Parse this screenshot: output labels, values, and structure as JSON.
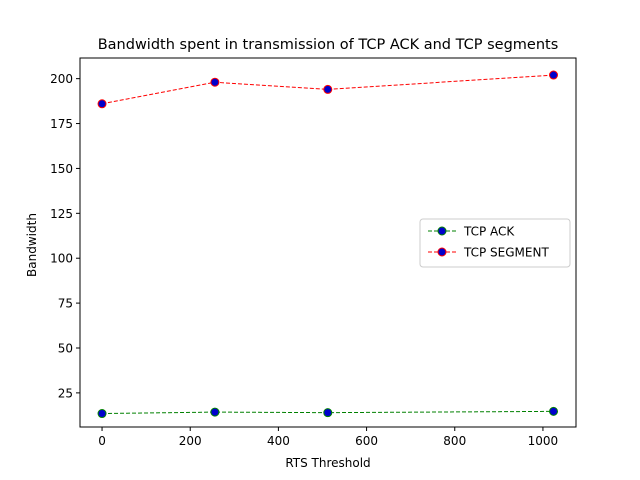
{
  "chart_data": {
    "type": "line",
    "title": "Bandwidth spent in transmission of TCP ACK and TCP segments",
    "xlabel": "RTS Threshold",
    "ylabel": "Bandwidth",
    "xlim": [
      -50,
      1075
    ],
    "ylim": [
      6,
      211.5
    ],
    "xticks": [
      0,
      200,
      400,
      600,
      800,
      1000
    ],
    "yticks": [
      25,
      50,
      75,
      100,
      125,
      150,
      175,
      200
    ],
    "grid": false,
    "legend_position": "center-right",
    "series": [
      {
        "name": "TCP ACK",
        "x": [
          0,
          256,
          512,
          1024
        ],
        "values": [
          13.5,
          14.3,
          14.0,
          14.7
        ],
        "line_color": "#008000",
        "marker_face": "#0000cc",
        "marker_edge": "#008000"
      },
      {
        "name": "TCP SEGMENT",
        "x": [
          0,
          256,
          512,
          1024
        ],
        "values": [
          186,
          198,
          194,
          202
        ],
        "line_color": "#ff0000",
        "marker_face": "#0000cc",
        "marker_edge": "#ff0000"
      }
    ]
  }
}
